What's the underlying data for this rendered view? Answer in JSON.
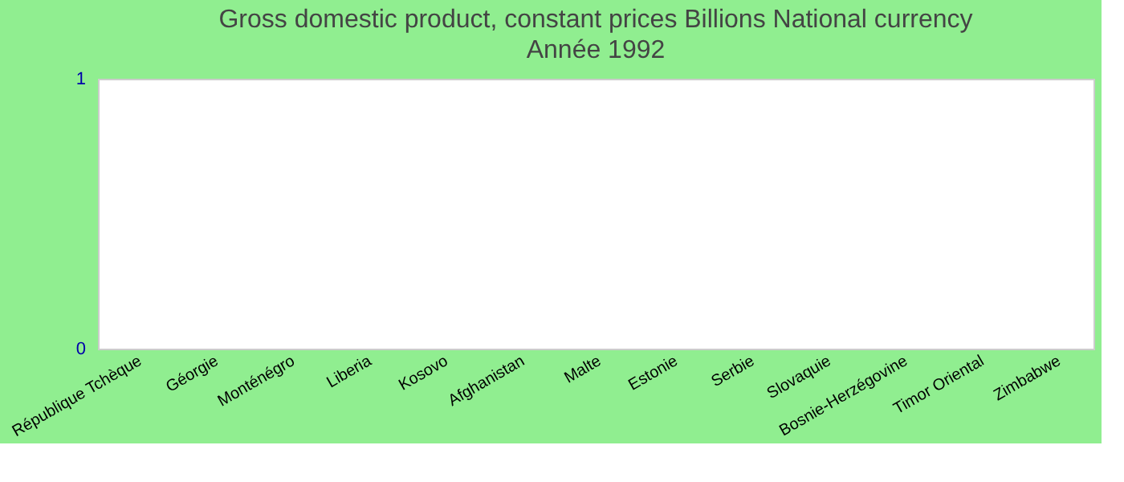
{
  "chart_data": {
    "type": "bar",
    "title": "Gross domestic product, constant prices Billions National currency",
    "subtitle": "Année 1992",
    "categories": [
      "République Tchèque",
      "Géorgie",
      "Monténégro",
      "Liberia",
      "Kosovo",
      "Afghanistan",
      "Malte",
      "Estonie",
      "Serbie",
      "Slovaquie",
      "Bosnie-Herzégovine",
      "Timor Oriental",
      "Zimbabwe"
    ],
    "values": [
      0,
      0,
      0,
      0,
      0,
      0,
      0,
      0,
      0,
      0,
      0,
      0,
      0
    ],
    "ylim": [
      0,
      1
    ],
    "yticks": [
      0,
      1
    ],
    "grid": false
  }
}
